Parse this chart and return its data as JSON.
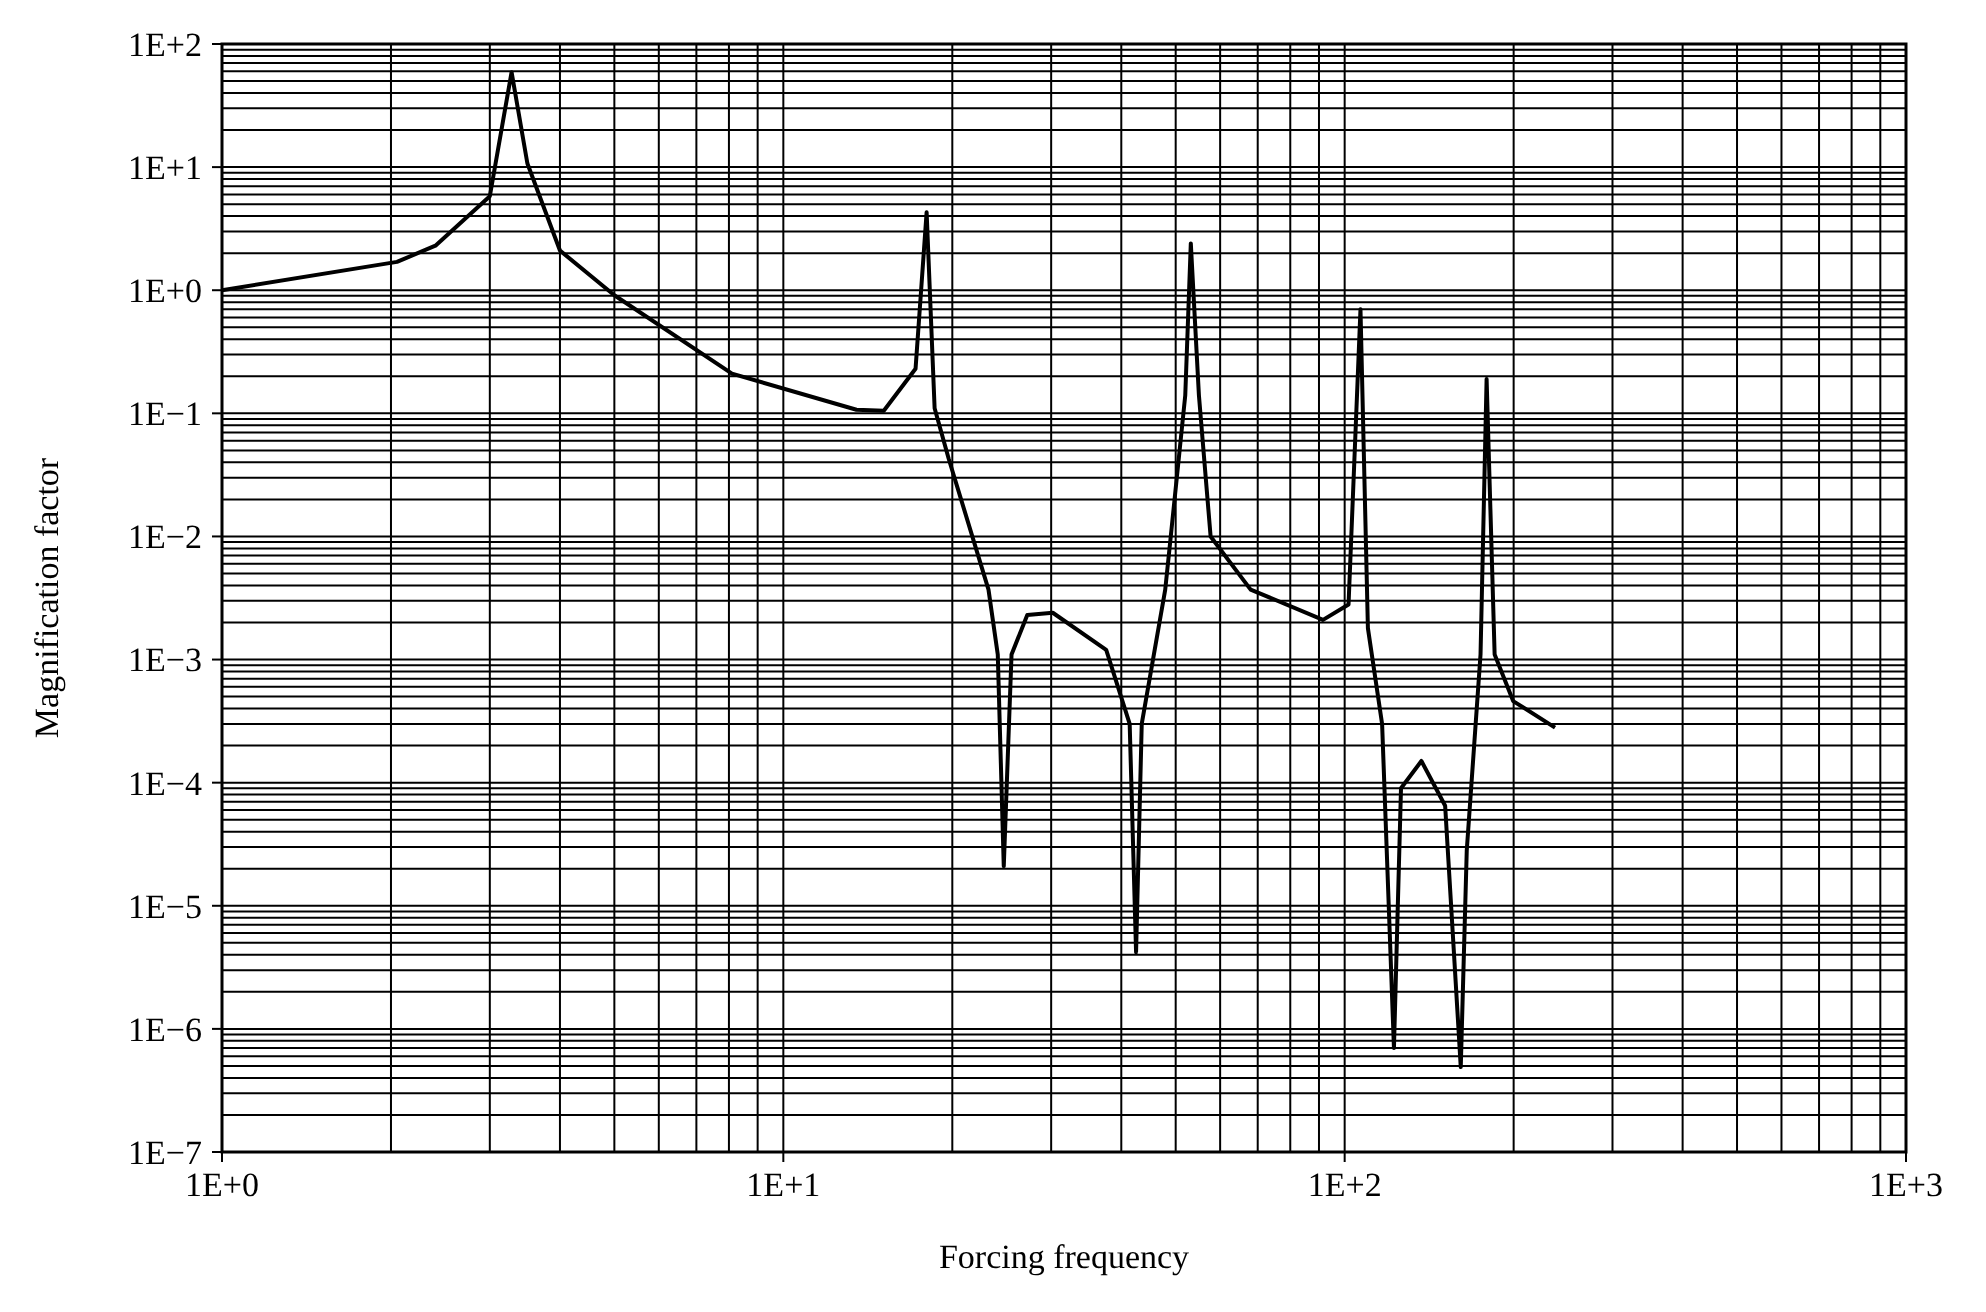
{
  "chart_data": {
    "type": "line",
    "xlabel": "Forcing frequency",
    "ylabel": "Magnification factor",
    "log": "xy",
    "grid": true,
    "line_style": "solid",
    "xlim": [
      1,
      1000
    ],
    "ylim": [
      1e-07,
      100
    ],
    "xticks": [
      {
        "value": 1,
        "label": "1E+0"
      },
      {
        "value": 10,
        "label": "1E+1"
      },
      {
        "value": 100,
        "label": "1E+2"
      },
      {
        "value": 1000,
        "label": "1E+3"
      }
    ],
    "yticks": [
      {
        "value": 1e-07,
        "label": "1E−7"
      },
      {
        "value": 1e-06,
        "label": "1E−6"
      },
      {
        "value": 1e-05,
        "label": "1E−5"
      },
      {
        "value": 0.0001,
        "label": "1E−4"
      },
      {
        "value": 0.001,
        "label": "1E−3"
      },
      {
        "value": 0.01,
        "label": "1E−2"
      },
      {
        "value": 0.1,
        "label": "1E−1"
      },
      {
        "value": 1,
        "label": "1E+0"
      },
      {
        "value": 10,
        "label": "1E+1"
      },
      {
        "value": 100,
        "label": "1E+2"
      }
    ],
    "series": [
      {
        "color": "#000000",
        "x": [
          1,
          2.05,
          2.4,
          3.0,
          3.28,
          3.5,
          4.0,
          5.0,
          8.1,
          13.5,
          15.1,
          17.2,
          18.0,
          18.6,
          19.7,
          23.2,
          24.1,
          24.7,
          25.5,
          27.2,
          30.2,
          37.6,
          41.4,
          42.5,
          43.5,
          47.9,
          49,
          52,
          53.2,
          55,
          57.7,
          68,
          91.5,
          101.6,
          106.7,
          110,
          116.6,
          122.4,
          126,
          137,
          151,
          161,
          165,
          174.6,
          179,
          185,
          199.6,
          237
        ],
        "values": [
          1.0,
          1.7,
          2.3,
          5.8,
          59,
          10.7,
          2.1,
          0.91,
          0.21,
          0.107,
          0.105,
          0.23,
          4.3,
          0.11,
          0.043,
          0.0037,
          0.0011,
          2.1e-05,
          0.0011,
          0.0023,
          0.0024,
          0.0012,
          0.0003,
          4.2e-06,
          0.0003,
          0.0037,
          0.01,
          0.14,
          2.4,
          0.14,
          0.01,
          0.0037,
          0.0021,
          0.0028,
          0.7,
          0.0018,
          0.0003,
          7e-07,
          9e-05,
          0.00015,
          6.5e-05,
          4.9e-07,
          2.8e-05,
          0.0011,
          0.19,
          0.0011,
          0.00046,
          0.00028
        ]
      }
    ]
  }
}
